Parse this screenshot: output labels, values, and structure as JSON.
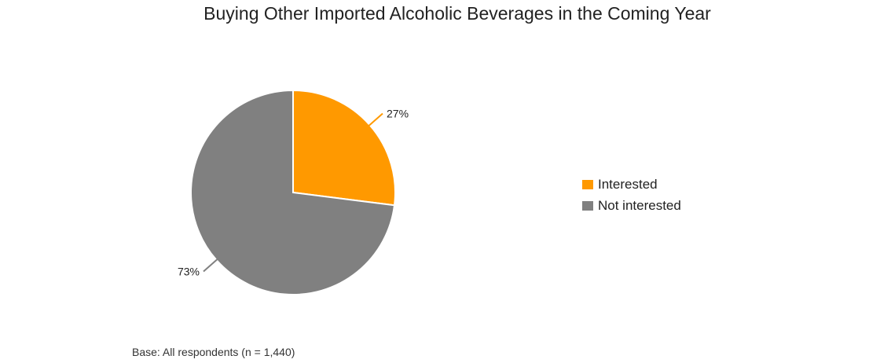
{
  "chart_data": {
    "type": "pie",
    "title": "Buying Other Imported Alcoholic Beverages in the Coming Year",
    "slices": [
      {
        "label": "Interested",
        "value": 27,
        "display": "27%",
        "color": "#ff9900"
      },
      {
        "label": "Not interested",
        "value": 73,
        "display": "73%",
        "color": "#808080"
      }
    ],
    "legend_position": "right"
  },
  "footnote": "Base: All respondents (n = 1,440)"
}
